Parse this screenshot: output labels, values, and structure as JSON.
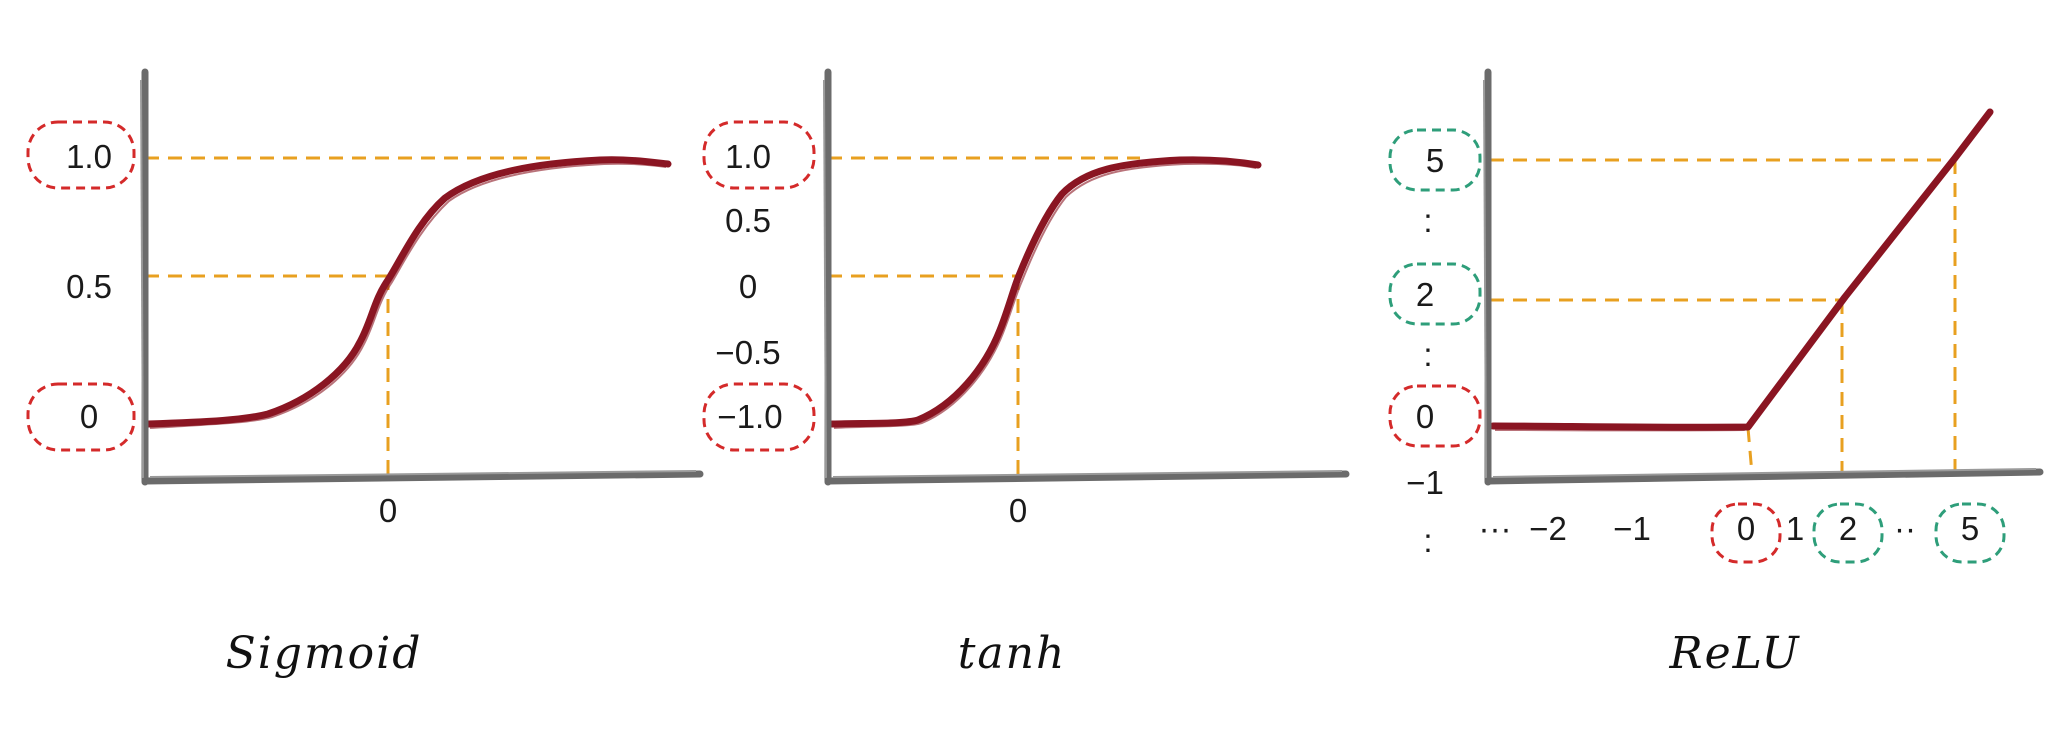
{
  "colors": {
    "curve": "#8a1522",
    "guide": "#e8a020",
    "axis": "#6b6b6b",
    "highlight_red": "#d42a2a",
    "highlight_green": "#2e9e7a"
  },
  "panels": [
    {
      "id": "sigmoid",
      "title": "Sigmoid",
      "y_labels": [
        {
          "text": "1.0",
          "highlight": "red"
        },
        {
          "text": "0.5",
          "highlight": "none"
        },
        {
          "text": "0",
          "highlight": "red"
        }
      ],
      "x_labels": [
        {
          "text": "0",
          "highlight": "none"
        }
      ]
    },
    {
      "id": "tanh",
      "title": "tanh",
      "y_labels": [
        {
          "text": "1.0",
          "highlight": "red"
        },
        {
          "text": "0.5",
          "highlight": "none"
        },
        {
          "text": "0",
          "highlight": "none"
        },
        {
          "text": "−0.5",
          "highlight": "none"
        },
        {
          "text": "−1.0",
          "highlight": "red"
        }
      ],
      "x_labels": [
        {
          "text": "0",
          "highlight": "none"
        }
      ]
    },
    {
      "id": "relu",
      "title": "ReLU",
      "y_labels": [
        {
          "text": "5",
          "highlight": "green"
        },
        {
          "text": ":",
          "highlight": "none"
        },
        {
          "text": "2",
          "highlight": "green"
        },
        {
          "text": ":",
          "highlight": "none"
        },
        {
          "text": "0",
          "highlight": "red"
        },
        {
          "text": "−1",
          "highlight": "none"
        },
        {
          "text": ":",
          "highlight": "none"
        }
      ],
      "x_labels": [
        {
          "text": "···",
          "highlight": "none"
        },
        {
          "text": "−2",
          "highlight": "none"
        },
        {
          "text": "−1",
          "highlight": "none"
        },
        {
          "text": "0",
          "highlight": "red"
        },
        {
          "text": "1",
          "highlight": "none"
        },
        {
          "text": "2",
          "highlight": "green"
        },
        {
          "text": "··",
          "highlight": "none"
        },
        {
          "text": "5",
          "highlight": "green"
        }
      ]
    }
  ]
}
